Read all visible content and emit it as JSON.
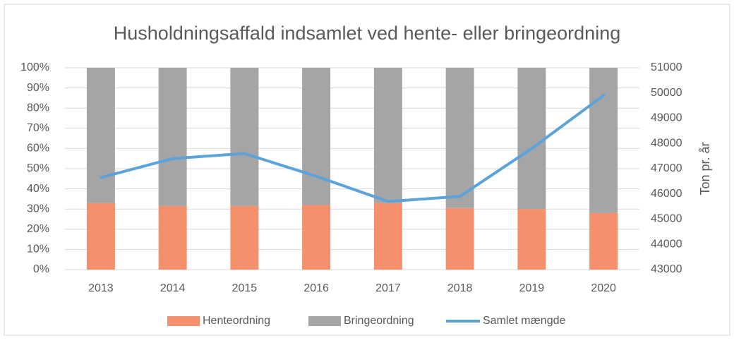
{
  "chart_data": {
    "type": "bar",
    "stacked": true,
    "title": "Husholdningsaffald indsamlet ved hente- eller bringeordning",
    "y2label": "Ton pr. år",
    "categories": [
      "2013",
      "2014",
      "2015",
      "2016",
      "2017",
      "2018",
      "2019",
      "2020"
    ],
    "series": [
      {
        "name": "Henteordning",
        "type": "bar",
        "color": "#f4916c",
        "values": [
          33,
          31.5,
          31.5,
          32,
          33,
          30.5,
          30,
          28
        ]
      },
      {
        "name": "Bringeordning",
        "type": "bar",
        "color": "#a5a5a5",
        "values": [
          67,
          68.5,
          68.5,
          68,
          67,
          69.5,
          70,
          72
        ]
      },
      {
        "name": "Samlet mængde",
        "type": "line",
        "axis": "y2",
        "color": "#5ba3d9",
        "values": [
          46650,
          47400,
          47600,
          46700,
          45700,
          45900,
          47800,
          49900
        ]
      }
    ],
    "ylim": [
      0,
      100
    ],
    "yticks": [
      {
        "value": 0,
        "label": "0%"
      },
      {
        "value": 10,
        "label": "10%"
      },
      {
        "value": 20,
        "label": "20%"
      },
      {
        "value": 30,
        "label": "30%"
      },
      {
        "value": 40,
        "label": "40%"
      },
      {
        "value": 50,
        "label": "50%"
      },
      {
        "value": 60,
        "label": "60%"
      },
      {
        "value": 70,
        "label": "70%"
      },
      {
        "value": 80,
        "label": "80%"
      },
      {
        "value": 90,
        "label": "90%"
      },
      {
        "value": 100,
        "label": "100%"
      }
    ],
    "y2lim": [
      43000,
      51000
    ],
    "y2ticks": [
      43000,
      44000,
      45000,
      46000,
      47000,
      48000,
      49000,
      50000,
      51000
    ],
    "grid": true,
    "legend": "bottom"
  }
}
